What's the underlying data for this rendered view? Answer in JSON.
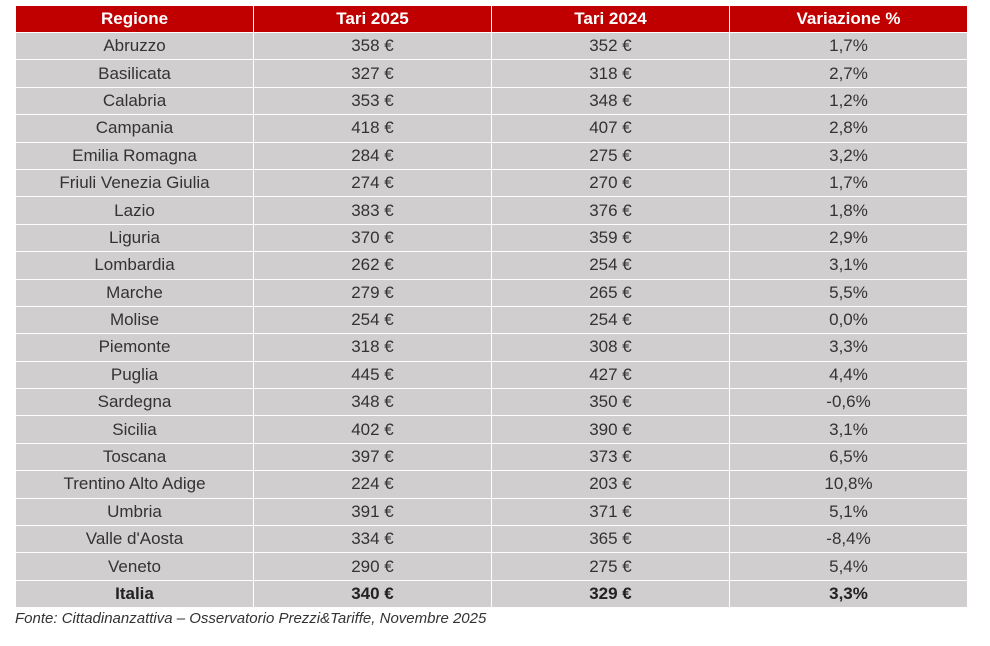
{
  "table": {
    "header": [
      "Regione",
      "Tari 2025",
      "Tari 2024",
      "Variazione %"
    ],
    "rows": [
      [
        "Abruzzo",
        "358 €",
        "352 €",
        "1,7%"
      ],
      [
        "Basilicata",
        "327 €",
        "318 €",
        "2,7%"
      ],
      [
        "Calabria",
        "353 €",
        "348 €",
        "1,2%"
      ],
      [
        "Campania",
        "418 €",
        "407 €",
        "2,8%"
      ],
      [
        "Emilia Romagna",
        "284 €",
        "275 €",
        "3,2%"
      ],
      [
        "Friuli Venezia Giulia",
        "274 €",
        "270 €",
        "1,7%"
      ],
      [
        "Lazio",
        "383 €",
        "376 €",
        "1,8%"
      ],
      [
        "Liguria",
        "370 €",
        "359 €",
        "2,9%"
      ],
      [
        "Lombardia",
        "262 €",
        "254 €",
        "3,1%"
      ],
      [
        "Marche",
        "279 €",
        "265 €",
        "5,5%"
      ],
      [
        "Molise",
        "254 €",
        "254 €",
        "0,0%"
      ],
      [
        "Piemonte",
        "318 €",
        "308 €",
        "3,3%"
      ],
      [
        "Puglia",
        "445 €",
        "427 €",
        "4,4%"
      ],
      [
        "Sardegna",
        "348 €",
        "350 €",
        "-0,6%"
      ],
      [
        "Sicilia",
        "402 €",
        "390 €",
        "3,1%"
      ],
      [
        "Toscana",
        "397 €",
        "373 €",
        "6,5%"
      ],
      [
        "Trentino Alto Adige",
        "224 €",
        "203 €",
        "10,8%"
      ],
      [
        "Umbria",
        "391 €",
        "371 €",
        "5,1%"
      ],
      [
        "Valle d'Aosta",
        "334 €",
        "365 €",
        "-8,4%"
      ],
      [
        "Veneto",
        "290 €",
        "275 €",
        "5,4%"
      ]
    ],
    "total": [
      "Italia",
      "340 €",
      "329 €",
      "3,3%"
    ]
  },
  "footer": "Fonte: Cittadinanzattiva – Osservatorio Prezzi&Tariffe, Novembre 2025"
}
